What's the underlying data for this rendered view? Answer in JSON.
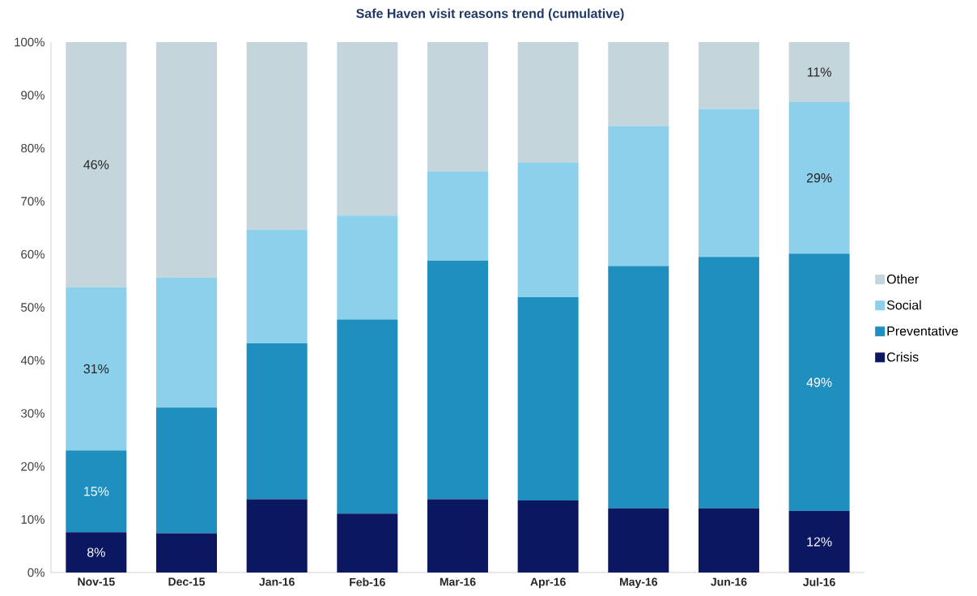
{
  "chart_data": {
    "type": "bar",
    "stacked": true,
    "title": "Safe Haven visit reasons trend (cumulative)",
    "categories": [
      "Nov-15",
      "Dec-15",
      "Jan-16",
      "Feb-16",
      "Mar-16",
      "Apr-16",
      "May-16",
      "Jun-16",
      "Jul-16"
    ],
    "series": [
      {
        "name": "Crisis",
        "color": "#0b1760",
        "values": [
          7.6,
          7.4,
          13.8,
          11.1,
          13.8,
          13.6,
          12.1,
          12.1,
          11.6
        ],
        "value_labels": [
          "8%",
          null,
          null,
          null,
          null,
          null,
          null,
          null,
          "12%"
        ]
      },
      {
        "name": "Preventative",
        "color": "#1e8fbf",
        "values": [
          15.4,
          23.7,
          29.4,
          36.6,
          45.0,
          38.3,
          45.7,
          47.4,
          48.5
        ],
        "value_labels": [
          "15%",
          null,
          null,
          null,
          null,
          null,
          null,
          null,
          "49%"
        ]
      },
      {
        "name": "Social",
        "color": "#8dd0ec",
        "values": [
          30.8,
          24.5,
          21.4,
          19.6,
          16.8,
          25.4,
          26.4,
          27.9,
          28.6
        ],
        "value_labels": [
          "31%",
          null,
          null,
          null,
          null,
          null,
          null,
          null,
          "29%"
        ]
      },
      {
        "name": "Other",
        "color": "#c5d5dc",
        "values": [
          46.2,
          44.4,
          35.4,
          32.7,
          24.4,
          22.7,
          15.8,
          12.6,
          11.3
        ],
        "value_labels": [
          "46%",
          null,
          null,
          null,
          null,
          null,
          null,
          null,
          "11%"
        ]
      }
    ],
    "ylim": [
      0,
      100
    ],
    "yticks": [
      {
        "value": 0,
        "label": "0%"
      },
      {
        "value": 10,
        "label": "10%"
      },
      {
        "value": 20,
        "label": "20%"
      },
      {
        "value": 30,
        "label": "30%"
      },
      {
        "value": 40,
        "label": "40%"
      },
      {
        "value": 50,
        "label": "50%"
      },
      {
        "value": 60,
        "label": "60%"
      },
      {
        "value": 70,
        "label": "70%"
      },
      {
        "value": 80,
        "label": "80%"
      },
      {
        "value": 90,
        "label": "90%"
      },
      {
        "value": 100,
        "label": "100%"
      }
    ],
    "legend": "right"
  }
}
